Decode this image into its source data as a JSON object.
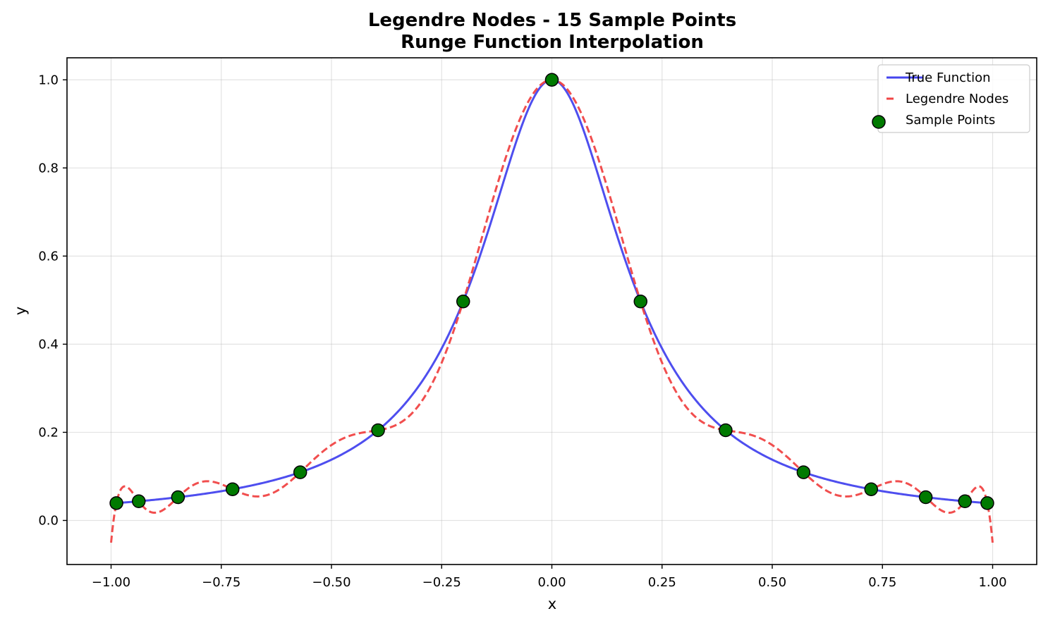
{
  "chart_data": {
    "type": "line",
    "title_line1": "Legendre Nodes - 15 Sample Points",
    "title_line2": "Runge Function Interpolation",
    "xlabel": "x",
    "ylabel": "y",
    "xlim": [
      -1.1,
      1.1
    ],
    "ylim": [
      -0.1,
      1.05
    ],
    "xticks": [
      -1.0,
      -0.75,
      -0.5,
      -0.25,
      0.0,
      0.25,
      0.5,
      0.75,
      1.0
    ],
    "xtick_labels": [
      "−1.00",
      "−0.75",
      "−0.50",
      "−0.25",
      "0.00",
      "0.25",
      "0.50",
      "0.75",
      "1.00"
    ],
    "yticks": [
      0.0,
      0.2,
      0.4,
      0.6,
      0.8,
      1.0
    ],
    "ytick_labels": [
      "0.0",
      "0.2",
      "0.4",
      "0.6",
      "0.8",
      "1.0"
    ],
    "grid": true,
    "legend_position": "top-right",
    "series": [
      {
        "name": "True Function",
        "style": "solid",
        "color": "#4444ee",
        "function": "1 / (1 + 25 x^2)",
        "x_range": [
          -1.0,
          1.0
        ]
      },
      {
        "name": "Legendre Nodes",
        "style": "dashed",
        "color": "#f04444",
        "x_range": [
          -1.0,
          1.0
        ]
      },
      {
        "name": "Sample Points",
        "style": "scatter",
        "color": "#007a00",
        "edge_color": "#000000",
        "x": [
          -0.9879,
          -0.9372,
          -0.8482,
          -0.7244,
          -0.5709,
          -0.3943,
          -0.2012,
          0.0,
          0.2012,
          0.3943,
          0.5709,
          0.7244,
          0.8482,
          0.9372,
          0.9879
        ],
        "y": [
          0.0394,
          0.0435,
          0.0527,
          0.0708,
          0.1093,
          0.2047,
          0.497,
          1.0,
          0.497,
          0.2047,
          0.1093,
          0.0708,
          0.0527,
          0.0435,
          0.0394
        ]
      }
    ]
  }
}
